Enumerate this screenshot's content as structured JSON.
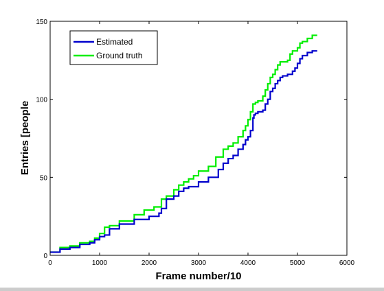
{
  "chart_data": {
    "type": "line",
    "title": "",
    "xlabel": "Frame number/10",
    "ylabel": "Entries [people",
    "xlim": [
      0,
      6000
    ],
    "ylim": [
      0,
      150
    ],
    "xticks": [
      0,
      1000,
      2000,
      3000,
      4000,
      5000,
      6000
    ],
    "yticks": [
      0,
      50,
      100,
      150
    ],
    "grid": false,
    "legend_position": "top-left",
    "series": [
      {
        "name": "Estimated",
        "color": "#0000cc",
        "step": true,
        "x": [
          0,
          200,
          400,
          600,
          800,
          900,
          1000,
          1100,
          1200,
          1400,
          1700,
          2000,
          2200,
          2250,
          2350,
          2500,
          2600,
          2700,
          2800,
          3000,
          3200,
          3400,
          3500,
          3600,
          3700,
          3800,
          3900,
          3950,
          4000,
          4050,
          4100,
          4120,
          4150,
          4200,
          4300,
          4350,
          4400,
          4450,
          4500,
          4550,
          4600,
          4650,
          4700,
          4800,
          4900,
          4950,
          5000,
          5050,
          5100,
          5200,
          5300,
          5400
        ],
        "y": [
          2,
          4,
          5,
          7,
          8,
          10,
          12,
          13,
          17,
          20,
          23,
          25,
          27,
          30,
          36,
          38,
          41,
          43,
          44,
          47,
          50,
          55,
          59,
          62,
          64,
          68,
          71,
          74,
          76,
          80,
          88,
          90,
          91,
          92,
          93,
          97,
          100,
          105,
          107,
          110,
          112,
          114,
          115,
          116,
          118,
          120,
          123,
          126,
          128,
          130,
          131,
          131
        ]
      },
      {
        "name": "Ground truth",
        "color": "#00ee00",
        "step": true,
        "x": [
          0,
          200,
          400,
          600,
          800,
          900,
          1000,
          1100,
          1200,
          1400,
          1700,
          1900,
          2100,
          2250,
          2350,
          2500,
          2600,
          2700,
          2800,
          2900,
          3000,
          3200,
          3350,
          3500,
          3600,
          3700,
          3800,
          3900,
          3950,
          4000,
          4050,
          4100,
          4150,
          4200,
          4300,
          4350,
          4400,
          4450,
          4500,
          4550,
          4600,
          4650,
          4700,
          4800,
          4850,
          4900,
          5000,
          5050,
          5100,
          5200,
          5300,
          5400
        ],
        "y": [
          2,
          5,
          6,
          8,
          9,
          11,
          14,
          18,
          19,
          22,
          26,
          29,
          31,
          36,
          38,
          42,
          45,
          47,
          49,
          51,
          54,
          57,
          63,
          68,
          70,
          72,
          76,
          80,
          83,
          87,
          92,
          97,
          98,
          99,
          102,
          106,
          110,
          114,
          116,
          119,
          122,
          124,
          124,
          125,
          129,
          131,
          133,
          136,
          137,
          139,
          141,
          141
        ]
      }
    ]
  }
}
